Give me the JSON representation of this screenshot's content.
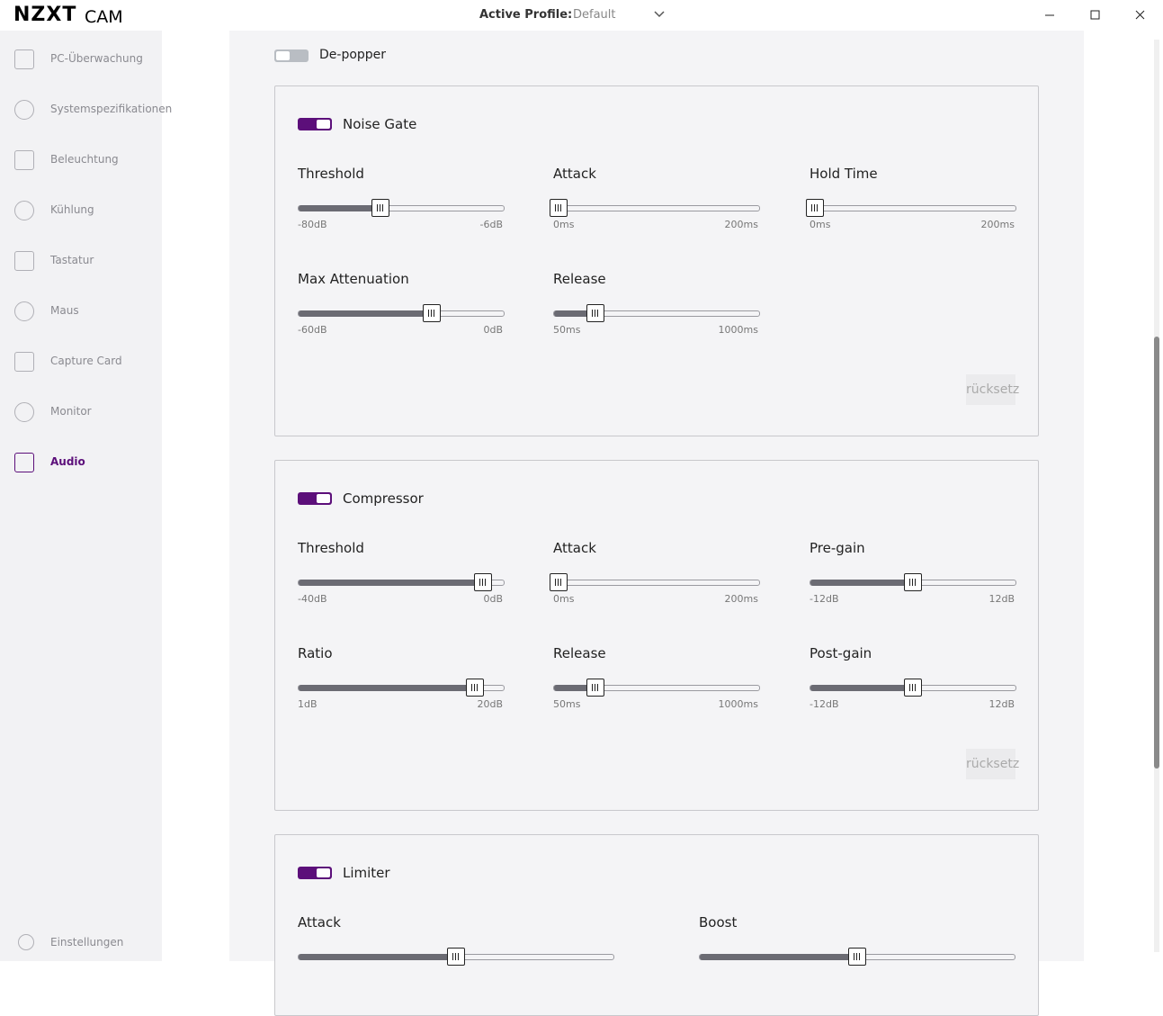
{
  "titlebar": {
    "brand": "NZXT",
    "product": "CAM",
    "profile_label": "Active Profile:",
    "profile_value": "Default"
  },
  "sidebar": {
    "items": [
      "PC-Überwachung",
      "Systemspezifikationen",
      "Beleuchtung",
      "Kühlung",
      "Tastatur",
      "Maus",
      "Capture Card",
      "Monitor",
      "Audio"
    ],
    "active": "Audio",
    "settings": "Einstellungen"
  },
  "depopper": {
    "label": "De-popper"
  },
  "sections": [
    {
      "title": "Noise Gate",
      "reset": "rücksetz",
      "sliders": [
        {
          "label": "Threshold",
          "min": "-80dB",
          "max": "-6dB"
        },
        {
          "label": "Attack",
          "min": "0ms",
          "max": "200ms"
        },
        {
          "label": "Hold Time",
          "min": "0ms",
          "max": "200ms"
        },
        {
          "label": "Max Attenuation",
          "min": "-60dB",
          "max": "0dB"
        },
        {
          "label": "Release",
          "min": "50ms",
          "max": "1000ms"
        }
      ]
    },
    {
      "title": "Compressor",
      "reset": "rücksetz",
      "sliders": [
        {
          "label": "Threshold",
          "min": "-40dB",
          "max": "0dB"
        },
        {
          "label": "Attack",
          "min": "0ms",
          "max": "200ms"
        },
        {
          "label": "Pre-gain",
          "min": "-12dB",
          "max": "12dB"
        },
        {
          "label": "Ratio",
          "min": "1dB",
          "max": "20dB"
        },
        {
          "label": "Release",
          "min": "50ms",
          "max": "1000ms"
        },
        {
          "label": "Post-gain",
          "min": "-12dB",
          "max": "12dB"
        }
      ]
    },
    {
      "title": "Limiter",
      "sliders": [
        {
          "label": "Attack"
        },
        {
          "label": "Boost"
        }
      ]
    }
  ]
}
